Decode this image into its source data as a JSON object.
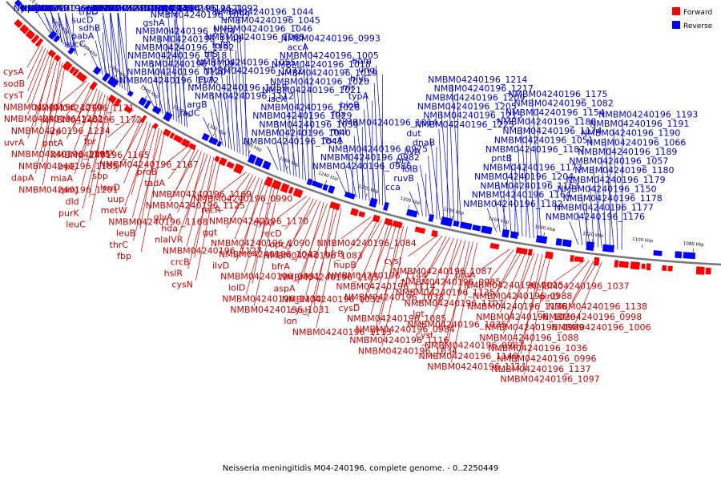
{
  "title": "Neisseria meningitidis M04-240196, complete genome. - 0..2250449",
  "legend": [
    {
      "label": "Forward",
      "color": "#ff0000"
    },
    {
      "label": "Reverse",
      "color": "#0000ff"
    }
  ],
  "colors": {
    "forward": "#ff0000",
    "reverse": "#0000ff",
    "forward_label": "#cc0000",
    "reverse_label": "#0000cc",
    "backbone": "#777777"
  },
  "ticks": [
    "1420 kbp",
    "1400 kbp",
    "1380 kbp",
    "1360 kbp",
    "1340 kbp",
    "1320 kbp",
    "1300 kbp",
    "1280 kbp",
    "1260 kbp",
    "1240 kbp",
    "1220 kbp",
    "1200 kbp",
    "1180 kbp",
    "1160 kbp",
    "1140 kbp",
    "1120 kbp",
    "1100 kbp",
    "1080 kbp"
  ],
  "labels": [
    {
      "text": "NMBM04240196_1299",
      "strand": "reverse"
    },
    {
      "text": "NMBM04240196_1261",
      "strand": "reverse"
    },
    {
      "text": "lst",
      "strand": "reverse"
    },
    {
      "text": "ydfG",
      "strand": "reverse"
    },
    {
      "text": "pip",
      "strand": "reverse"
    },
    {
      "text": "sdhC",
      "strand": "reverse"
    },
    {
      "text": "sdhD",
      "strand": "reverse"
    },
    {
      "text": "gltA",
      "strand": "reverse"
    },
    {
      "text": "efp",
      "strand": "reverse"
    },
    {
      "text": "metE",
      "strand": "reverse"
    },
    {
      "text": "sucA",
      "strand": "reverse"
    },
    {
      "text": "sucB",
      "strand": "reverse"
    },
    {
      "text": "sdhA",
      "strand": "reverse"
    },
    {
      "text": "sucC",
      "strand": "reverse"
    },
    {
      "text": "pabA",
      "strand": "reverse"
    },
    {
      "text": "sdhB",
      "strand": "reverse"
    },
    {
      "text": "sucD",
      "strand": "reverse"
    },
    {
      "text": "trpD",
      "strand": "reverse"
    },
    {
      "text": "psd",
      "strand": "reverse"
    },
    {
      "text": "serB",
      "strand": "reverse"
    },
    {
      "text": "purH",
      "strand": "reverse"
    },
    {
      "text": "NMBM04240196_1149",
      "strand": "reverse"
    },
    {
      "text": "NMBM04240196_1147",
      "strand": "reverse"
    },
    {
      "text": "NMBM04240196_1146",
      "strand": "reverse"
    },
    {
      "text": "NMBM04240196_1134",
      "strand": "reverse"
    },
    {
      "text": "NMBM04240196_1133",
      "strand": "reverse"
    },
    {
      "text": "NMBM04240196_1132",
      "strand": "reverse"
    },
    {
      "text": "NMBM04240196_1120",
      "strand": "reverse"
    },
    {
      "text": "NMBM04240196_1119",
      "strand": "reverse"
    },
    {
      "text": "NMBM04240196_1118",
      "strand": "reverse"
    },
    {
      "text": "NMBM04240196_1192",
      "strand": "reverse"
    },
    {
      "text": "NMBM04240196_1148",
      "strand": "reverse"
    },
    {
      "text": "NMBM04240196_1104",
      "strand": "reverse"
    },
    {
      "text": "gshA",
      "strand": "reverse"
    },
    {
      "text": "NMBM04240196_1099",
      "strand": "reverse"
    },
    {
      "text": "NMBM04240196_1121",
      "strand": "reverse"
    },
    {
      "text": "ftsK1",
      "strand": "reverse"
    },
    {
      "text": "NMBM04240196_1092",
      "strand": "reverse"
    },
    {
      "text": "dusC",
      "strand": "reverse"
    },
    {
      "text": "radC",
      "strand": "reverse"
    },
    {
      "text": "argB",
      "strand": "reverse"
    },
    {
      "text": "NMBM04240196_1112",
      "strand": "reverse"
    },
    {
      "text": "NMBM04240196_1059",
      "strand": "reverse"
    },
    {
      "text": "leuA",
      "strand": "reverse"
    },
    {
      "text": "NMBM04240196_1072",
      "strand": "reverse"
    },
    {
      "text": "NMBM04240196_1055",
      "strand": "reverse"
    },
    {
      "text": "tilS",
      "strand": "reverse"
    },
    {
      "text": "folB",
      "strand": "reverse"
    },
    {
      "text": "NMBM04240196_1065",
      "strand": "reverse"
    },
    {
      "text": "NMBM04240196_1046",
      "strand": "reverse"
    },
    {
      "text": "NMBM04240196_1045",
      "strand": "reverse"
    },
    {
      "text": "NMBM04240196_1044",
      "strand": "reverse"
    },
    {
      "text": "NMBM04240196_1041",
      "strand": "reverse"
    },
    {
      "text": "NMBM04240196_1040",
      "strand": "reverse"
    },
    {
      "text": "NMBM04240196_1039",
      "strand": "reverse"
    },
    {
      "text": "NMBM04240196_1029",
      "strand": "reverse"
    },
    {
      "text": "NMBM04240196_1028",
      "strand": "reverse"
    },
    {
      "text": "iscX",
      "strand": "reverse"
    },
    {
      "text": "NMBM04240196_1021",
      "strand": "reverse"
    },
    {
      "text": "NMBM04240196_1020",
      "strand": "reverse"
    },
    {
      "text": "NMBM04240196_1019",
      "strand": "reverse"
    },
    {
      "text": "NMBM04240196_1018",
      "strand": "reverse"
    },
    {
      "text": "NMBM04240196_1005",
      "strand": "reverse"
    },
    {
      "text": "accA",
      "strand": "reverse"
    },
    {
      "text": "NMBM04240196_0993",
      "strand": "reverse"
    },
    {
      "text": "NMBM04240196_0986",
      "strand": "reverse"
    },
    {
      "text": "NMBM04240196_0982",
      "strand": "reverse"
    },
    {
      "text": "NMBM04240196_0975",
      "strand": "reverse"
    },
    {
      "text": "hscA",
      "strand": "reverse"
    },
    {
      "text": "mpl",
      "strand": "reverse"
    },
    {
      "text": "NMBM04240196_1014",
      "strand": "reverse"
    },
    {
      "text": "fdx",
      "strand": "reverse"
    },
    {
      "text": "bioB",
      "strand": "reverse"
    },
    {
      "text": "typA",
      "strand": "reverse"
    },
    {
      "text": "rnr",
      "strand": "reverse"
    },
    {
      "text": "hlyC",
      "strand": "reverse"
    },
    {
      "text": "ung",
      "strand": "reverse"
    },
    {
      "text": "hom",
      "strand": "reverse"
    },
    {
      "text": "cca",
      "strand": "reverse"
    },
    {
      "text": "ruvB",
      "strand": "reverse"
    },
    {
      "text": "lolB",
      "strand": "reverse"
    },
    {
      "text": "prs",
      "strand": "reverse"
    },
    {
      "text": "ilvA",
      "strand": "reverse"
    },
    {
      "text": "dnaB",
      "strand": "reverse"
    },
    {
      "text": "dut",
      "strand": "reverse"
    },
    {
      "text": "cysA",
      "strand": "forward"
    },
    {
      "text": "sodB",
      "strand": "forward"
    },
    {
      "text": "cysT",
      "strand": "forward"
    },
    {
      "text": "NMBM04240196_1240",
      "strand": "forward"
    },
    {
      "text": "NMBM04240196_1232",
      "strand": "forward"
    },
    {
      "text": "NMBM04240196_1225",
      "strand": "reverse"
    },
    {
      "text": "NMBM04240196_1215",
      "strand": "reverse"
    },
    {
      "text": "NMBM04240196_1234",
      "strand": "forward"
    },
    {
      "text": "NMBM04240196_1205",
      "strand": "reverse"
    },
    {
      "text": "NMBM04240196_1209",
      "strand": "reverse"
    },
    {
      "text": "uvrA",
      "strand": "forward"
    },
    {
      "text": "NMBM04240196_1195",
      "strand": "forward"
    },
    {
      "text": "NMBM04240196_1217",
      "strand": "reverse"
    },
    {
      "text": "NMBM04240196_1185",
      "strand": "forward"
    },
    {
      "text": "dapA",
      "strand": "forward"
    },
    {
      "text": "NMBM04240196_1201",
      "strand": "forward"
    },
    {
      "text": "NMBM04240196_1171",
      "strand": "forward"
    },
    {
      "text": "NMBM04240196_1214",
      "strand": "reverse"
    },
    {
      "text": "NMBM04240196_1182",
      "strand": "reverse"
    },
    {
      "text": "NMBM04240196_1164",
      "strand": "reverse"
    },
    {
      "text": "NMBM04240196_1172",
      "strand": "forward"
    },
    {
      "text": "NMBM04240196_1153",
      "strand": "reverse"
    },
    {
      "text": "NMBM04240196_1204",
      "strand": "reverse"
    },
    {
      "text": "irp",
      "strand": "forward"
    },
    {
      "text": "pntA",
      "strand": "forward"
    },
    {
      "text": "NMBM04240196_1165",
      "strand": "forward"
    },
    {
      "text": "trpE",
      "strand": "forward"
    },
    {
      "text": "miaA",
      "strand": "forward"
    },
    {
      "text": "rpmJ",
      "strand": "forward"
    },
    {
      "text": "NMBM04240196_1173",
      "strand": "reverse"
    },
    {
      "text": "dld",
      "strand": "forward"
    },
    {
      "text": "purK",
      "strand": "forward"
    },
    {
      "text": "leuC",
      "strand": "forward"
    },
    {
      "text": "fpr",
      "strand": "forward"
    },
    {
      "text": "metX",
      "strand": "forward"
    },
    {
      "text": "pntB",
      "strand": "reverse"
    },
    {
      "text": "NMBM04240196_1167",
      "strand": "forward"
    },
    {
      "text": "sbp",
      "strand": "forward"
    },
    {
      "text": "leuD",
      "strand": "forward"
    },
    {
      "text": "uup",
      "strand": "forward"
    },
    {
      "text": "metW",
      "strand": "forward"
    },
    {
      "text": "NMBM04240196_1168",
      "strand": "forward"
    },
    {
      "text": "leuB",
      "strand": "forward"
    },
    {
      "text": "thrC",
      "strand": "forward"
    },
    {
      "text": "fbp",
      "strand": "forward"
    },
    {
      "text": "proB",
      "strand": "forward"
    },
    {
      "text": "tadA",
      "strand": "forward"
    },
    {
      "text": "NMBM04240196_1187",
      "strand": "reverse"
    },
    {
      "text": "NMBM04240196_1169",
      "strand": "forward"
    },
    {
      "text": "NMBM04240196_1125",
      "strand": "forward"
    },
    {
      "text": "glyA",
      "strand": "forward"
    },
    {
      "text": "hda",
      "strand": "forward"
    },
    {
      "text": "NMBM04240196_1051",
      "strand": "reverse"
    },
    {
      "text": "NMBM04240196_1174",
      "strand": "reverse"
    },
    {
      "text": "nlaIVR",
      "strand": "forward"
    },
    {
      "text": "NMBM04240196_1127",
      "strand": "forward"
    },
    {
      "text": "crcB",
      "strand": "forward"
    },
    {
      "text": "hslR",
      "strand": "forward"
    },
    {
      "text": "cysN",
      "strand": "forward"
    },
    {
      "text": "NMBM04240196_0990",
      "strand": "forward"
    },
    {
      "text": "recR",
      "strand": "forward"
    },
    {
      "text": "NMBM04240196_1188",
      "strand": "reverse"
    },
    {
      "text": "NMBM04240196_1170",
      "strand": "forward"
    },
    {
      "text": "NMBM04240196_1154",
      "strand": "reverse"
    },
    {
      "text": "ggt",
      "strand": "forward"
    },
    {
      "text": "NMBM04240196_1090",
      "strand": "forward"
    },
    {
      "text": "NMBM04240196_1042",
      "strand": "forward"
    },
    {
      "text": "ilvD",
      "strand": "forward"
    },
    {
      "text": "NMBM04240196_0991",
      "strand": "forward"
    },
    {
      "text": "lolD",
      "strand": "forward"
    },
    {
      "text": "NMBM04240196_1130",
      "strand": "forward"
    },
    {
      "text": "NMBM04240196_1082",
      "strand": "reverse"
    },
    {
      "text": "NMBM04240196_1031",
      "strand": "forward"
    },
    {
      "text": "cysG",
      "strand": "forward"
    },
    {
      "text": "recD",
      "strand": "forward"
    },
    {
      "text": "NMBM04240196_1175",
      "strand": "reverse"
    },
    {
      "text": "opcA",
      "strand": "forward"
    },
    {
      "text": "NMBM04240196_1083",
      "strand": "forward"
    },
    {
      "text": "bfrA",
      "strand": "forward"
    },
    {
      "text": "NMBM04240196_1176",
      "strand": "reverse"
    },
    {
      "text": "NMBM04240196_1155",
      "strand": "forward"
    },
    {
      "text": "aspA",
      "strand": "forward"
    },
    {
      "text": "NMBM04240196_1032",
      "strand": "forward"
    },
    {
      "text": "cysH",
      "strand": "forward"
    },
    {
      "text": "lon",
      "strand": "forward"
    },
    {
      "text": "NMBM04240196_1113",
      "strand": "forward"
    },
    {
      "text": "NMBM04240196_1084",
      "strand": "forward"
    },
    {
      "text": "bfrB",
      "strand": "forward"
    },
    {
      "text": "hupB",
      "strand": "forward"
    },
    {
      "text": "NMBM04240196_1177",
      "strand": "reverse"
    },
    {
      "text": "NMBM04240196_1144",
      "strand": "forward"
    },
    {
      "text": "NMBM04240196_1114",
      "strand": "forward"
    },
    {
      "text": "NMBM04240196_1033",
      "strand": "forward"
    },
    {
      "text": "cysD",
      "strand": "forward"
    },
    {
      "text": "NMBM04240196_1085",
      "strand": "forward"
    },
    {
      "text": "NMBM04240196_0984",
      "strand": "forward"
    },
    {
      "text": "NMBM04240196_1178",
      "strand": "reverse"
    },
    {
      "text": "NMBM04240196_1150",
      "strand": "reverse"
    },
    {
      "text": "NMBM04240196_1116",
      "strand": "forward"
    },
    {
      "text": "NMBM04240196_1034",
      "strand": "forward"
    },
    {
      "text": "cysJ",
      "strand": "forward"
    },
    {
      "text": "NMBM04240196_1087",
      "strand": "forward"
    },
    {
      "text": "NMBM04240196_0985",
      "strand": "forward"
    },
    {
      "text": "NMBM04240196_1179",
      "strand": "reverse"
    },
    {
      "text": "NMBM04240196_1135",
      "strand": "forward"
    },
    {
      "text": "NMBM04240196_1107",
      "strand": "forward"
    },
    {
      "text": "lgt",
      "strand": "forward"
    },
    {
      "text": "NMBM04240196_1035",
      "strand": "forward"
    },
    {
      "text": "cysI",
      "strand": "forward"
    },
    {
      "text": "NMBM04240196_0987",
      "strand": "forward"
    },
    {
      "text": "NMBM04240196_1180",
      "strand": "reverse"
    },
    {
      "text": "NMBM04240196_1140",
      "strand": "forward"
    },
    {
      "text": "NMBM04240196_1111",
      "strand": "forward"
    },
    {
      "text": "proA",
      "strand": "forward"
    },
    {
      "text": "NMBM04240196_1057",
      "strand": "reverse"
    },
    {
      "text": "NMBM04240196_1015",
      "strand": "forward"
    },
    {
      "text": "NMBM04240196_0988",
      "strand": "forward"
    },
    {
      "text": "NMBM04240196_1189",
      "strand": "reverse"
    },
    {
      "text": "NMBM04240196_1136",
      "strand": "forward"
    },
    {
      "text": "NMBM04240196_1066",
      "strand": "reverse"
    },
    {
      "text": "NMBM04240196_1026",
      "strand": "forward"
    },
    {
      "text": "NMBM04240196_0989",
      "strand": "forward"
    },
    {
      "text": "NMBM04240196_1190",
      "strand": "reverse"
    },
    {
      "text": "NMBM04240196_1088",
      "strand": "forward"
    },
    {
      "text": "NMBM04240196_1036",
      "strand": "forward"
    },
    {
      "text": "NMBM04240196_0996",
      "strand": "forward"
    },
    {
      "text": "NMBM04240196_1137",
      "strand": "forward"
    },
    {
      "text": "NMBM04240196_1097",
      "strand": "forward"
    },
    {
      "text": "NMBM04240196_1191",
      "strand": "reverse"
    },
    {
      "text": "NMBM04240196_1037",
      "strand": "forward"
    },
    {
      "text": "glnD",
      "strand": "forward"
    },
    {
      "text": "NMBM04240196_1138",
      "strand": "forward"
    },
    {
      "text": "NMBM04240196_1193",
      "strand": "reverse"
    },
    {
      "text": "NMBM04240196_0998",
      "strand": "forward"
    },
    {
      "text": "NMBM04240196_1006",
      "strand": "forward"
    }
  ]
}
